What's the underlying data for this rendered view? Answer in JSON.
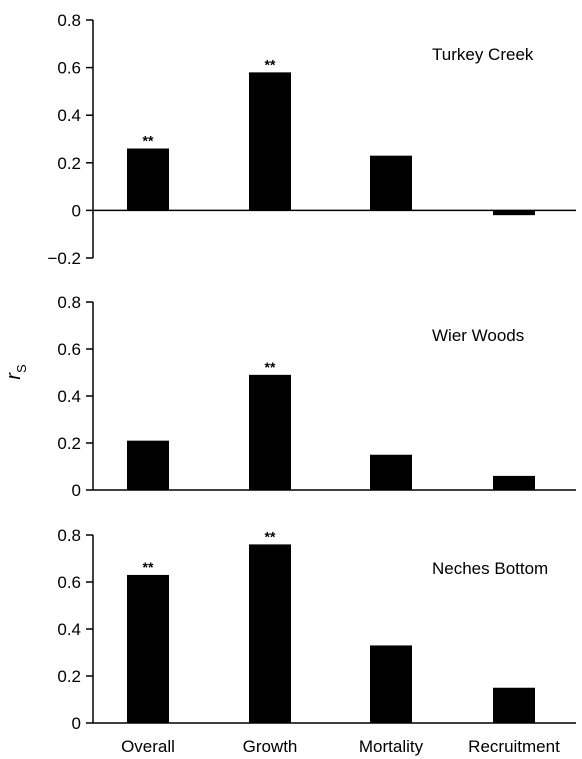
{
  "chart_data": {
    "type": "bar",
    "categories": [
      "Overall",
      "Growth",
      "Mortality",
      "Recruitment"
    ],
    "ylabel": "r",
    "ylabel_subscript": "S",
    "colors": {
      "bar": "#000000",
      "axis": "#000000"
    },
    "panels": [
      {
        "title": "Turkey Creek",
        "values": [
          0.26,
          0.58,
          0.23,
          -0.02
        ],
        "significance": [
          "**",
          "**",
          "",
          ""
        ],
        "ylim": [
          -0.2,
          0.8
        ],
        "yticks": [
          "0.8",
          "0.6",
          "0.4",
          "0.2",
          "0",
          "−0.2"
        ]
      },
      {
        "title": "Wier Woods",
        "values": [
          0.21,
          0.49,
          0.15,
          0.06
        ],
        "significance": [
          "",
          "**",
          "",
          ""
        ],
        "ylim": [
          0,
          0.8
        ],
        "yticks": [
          "0.8",
          "0.6",
          "0.4",
          "0.2",
          "0"
        ]
      },
      {
        "title": "Neches Bottom",
        "values": [
          0.63,
          0.76,
          0.33,
          0.15
        ],
        "significance": [
          "**",
          "**",
          "",
          ""
        ],
        "ylim": [
          0,
          0.8
        ],
        "yticks": [
          "0.8",
          "0.6",
          "0.4",
          "0.2",
          "0"
        ]
      }
    ]
  }
}
